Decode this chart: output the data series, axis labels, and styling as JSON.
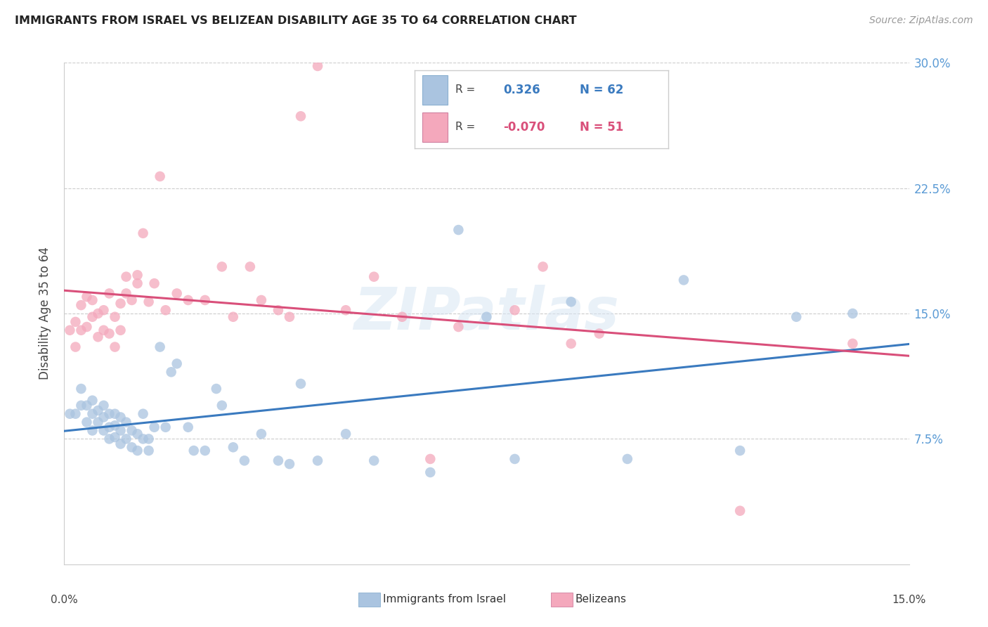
{
  "title": "IMMIGRANTS FROM ISRAEL VS BELIZEAN DISABILITY AGE 35 TO 64 CORRELATION CHART",
  "source": "Source: ZipAtlas.com",
  "ylabel": "Disability Age 35 to 64",
  "xlim": [
    0.0,
    0.15
  ],
  "ylim": [
    0.0,
    0.3
  ],
  "yticks": [
    0.075,
    0.15,
    0.225,
    0.3
  ],
  "ytick_labels": [
    "7.5%",
    "15.0%",
    "22.5%",
    "30.0%"
  ],
  "blue_color": "#aac4e0",
  "pink_color": "#f4a8bc",
  "line_blue": "#3a7abf",
  "line_pink": "#d94f7a",
  "watermark": "ZIPatlas",
  "legend_r1": "0.326",
  "legend_n1": "62",
  "legend_r2": "-0.070",
  "legend_n2": "51",
  "israel_x": [
    0.001,
    0.002,
    0.003,
    0.003,
    0.004,
    0.004,
    0.005,
    0.005,
    0.005,
    0.006,
    0.006,
    0.007,
    0.007,
    0.007,
    0.008,
    0.008,
    0.008,
    0.009,
    0.009,
    0.009,
    0.01,
    0.01,
    0.01,
    0.011,
    0.011,
    0.012,
    0.012,
    0.013,
    0.013,
    0.014,
    0.014,
    0.015,
    0.015,
    0.016,
    0.017,
    0.018,
    0.019,
    0.02,
    0.022,
    0.023,
    0.025,
    0.027,
    0.028,
    0.03,
    0.032,
    0.035,
    0.038,
    0.04,
    0.042,
    0.045,
    0.05,
    0.055,
    0.065,
    0.07,
    0.075,
    0.08,
    0.09,
    0.1,
    0.11,
    0.12,
    0.13,
    0.14
  ],
  "israel_y": [
    0.09,
    0.09,
    0.095,
    0.105,
    0.085,
    0.095,
    0.08,
    0.09,
    0.098,
    0.085,
    0.092,
    0.08,
    0.088,
    0.095,
    0.075,
    0.082,
    0.09,
    0.076,
    0.083,
    0.09,
    0.072,
    0.08,
    0.088,
    0.075,
    0.085,
    0.07,
    0.08,
    0.068,
    0.078,
    0.075,
    0.09,
    0.068,
    0.075,
    0.082,
    0.13,
    0.082,
    0.115,
    0.12,
    0.082,
    0.068,
    0.068,
    0.105,
    0.095,
    0.07,
    0.062,
    0.078,
    0.062,
    0.06,
    0.108,
    0.062,
    0.078,
    0.062,
    0.055,
    0.2,
    0.148,
    0.063,
    0.157,
    0.063,
    0.17,
    0.068,
    0.148,
    0.15
  ],
  "belize_x": [
    0.001,
    0.002,
    0.002,
    0.003,
    0.003,
    0.004,
    0.004,
    0.005,
    0.005,
    0.006,
    0.006,
    0.007,
    0.007,
    0.008,
    0.008,
    0.009,
    0.009,
    0.01,
    0.01,
    0.011,
    0.011,
    0.012,
    0.013,
    0.013,
    0.014,
    0.015,
    0.016,
    0.017,
    0.018,
    0.02,
    0.022,
    0.025,
    0.028,
    0.03,
    0.033,
    0.035,
    0.038,
    0.04,
    0.042,
    0.045,
    0.05,
    0.055,
    0.06,
    0.065,
    0.07,
    0.08,
    0.085,
    0.09,
    0.095,
    0.12,
    0.14
  ],
  "belize_y": [
    0.14,
    0.13,
    0.145,
    0.14,
    0.155,
    0.142,
    0.16,
    0.148,
    0.158,
    0.136,
    0.15,
    0.14,
    0.152,
    0.138,
    0.162,
    0.13,
    0.148,
    0.14,
    0.156,
    0.162,
    0.172,
    0.158,
    0.168,
    0.173,
    0.198,
    0.157,
    0.168,
    0.232,
    0.152,
    0.162,
    0.158,
    0.158,
    0.178,
    0.148,
    0.178,
    0.158,
    0.152,
    0.148,
    0.268,
    0.298,
    0.152,
    0.172,
    0.148,
    0.063,
    0.142,
    0.152,
    0.178,
    0.132,
    0.138,
    0.032,
    0.132
  ]
}
